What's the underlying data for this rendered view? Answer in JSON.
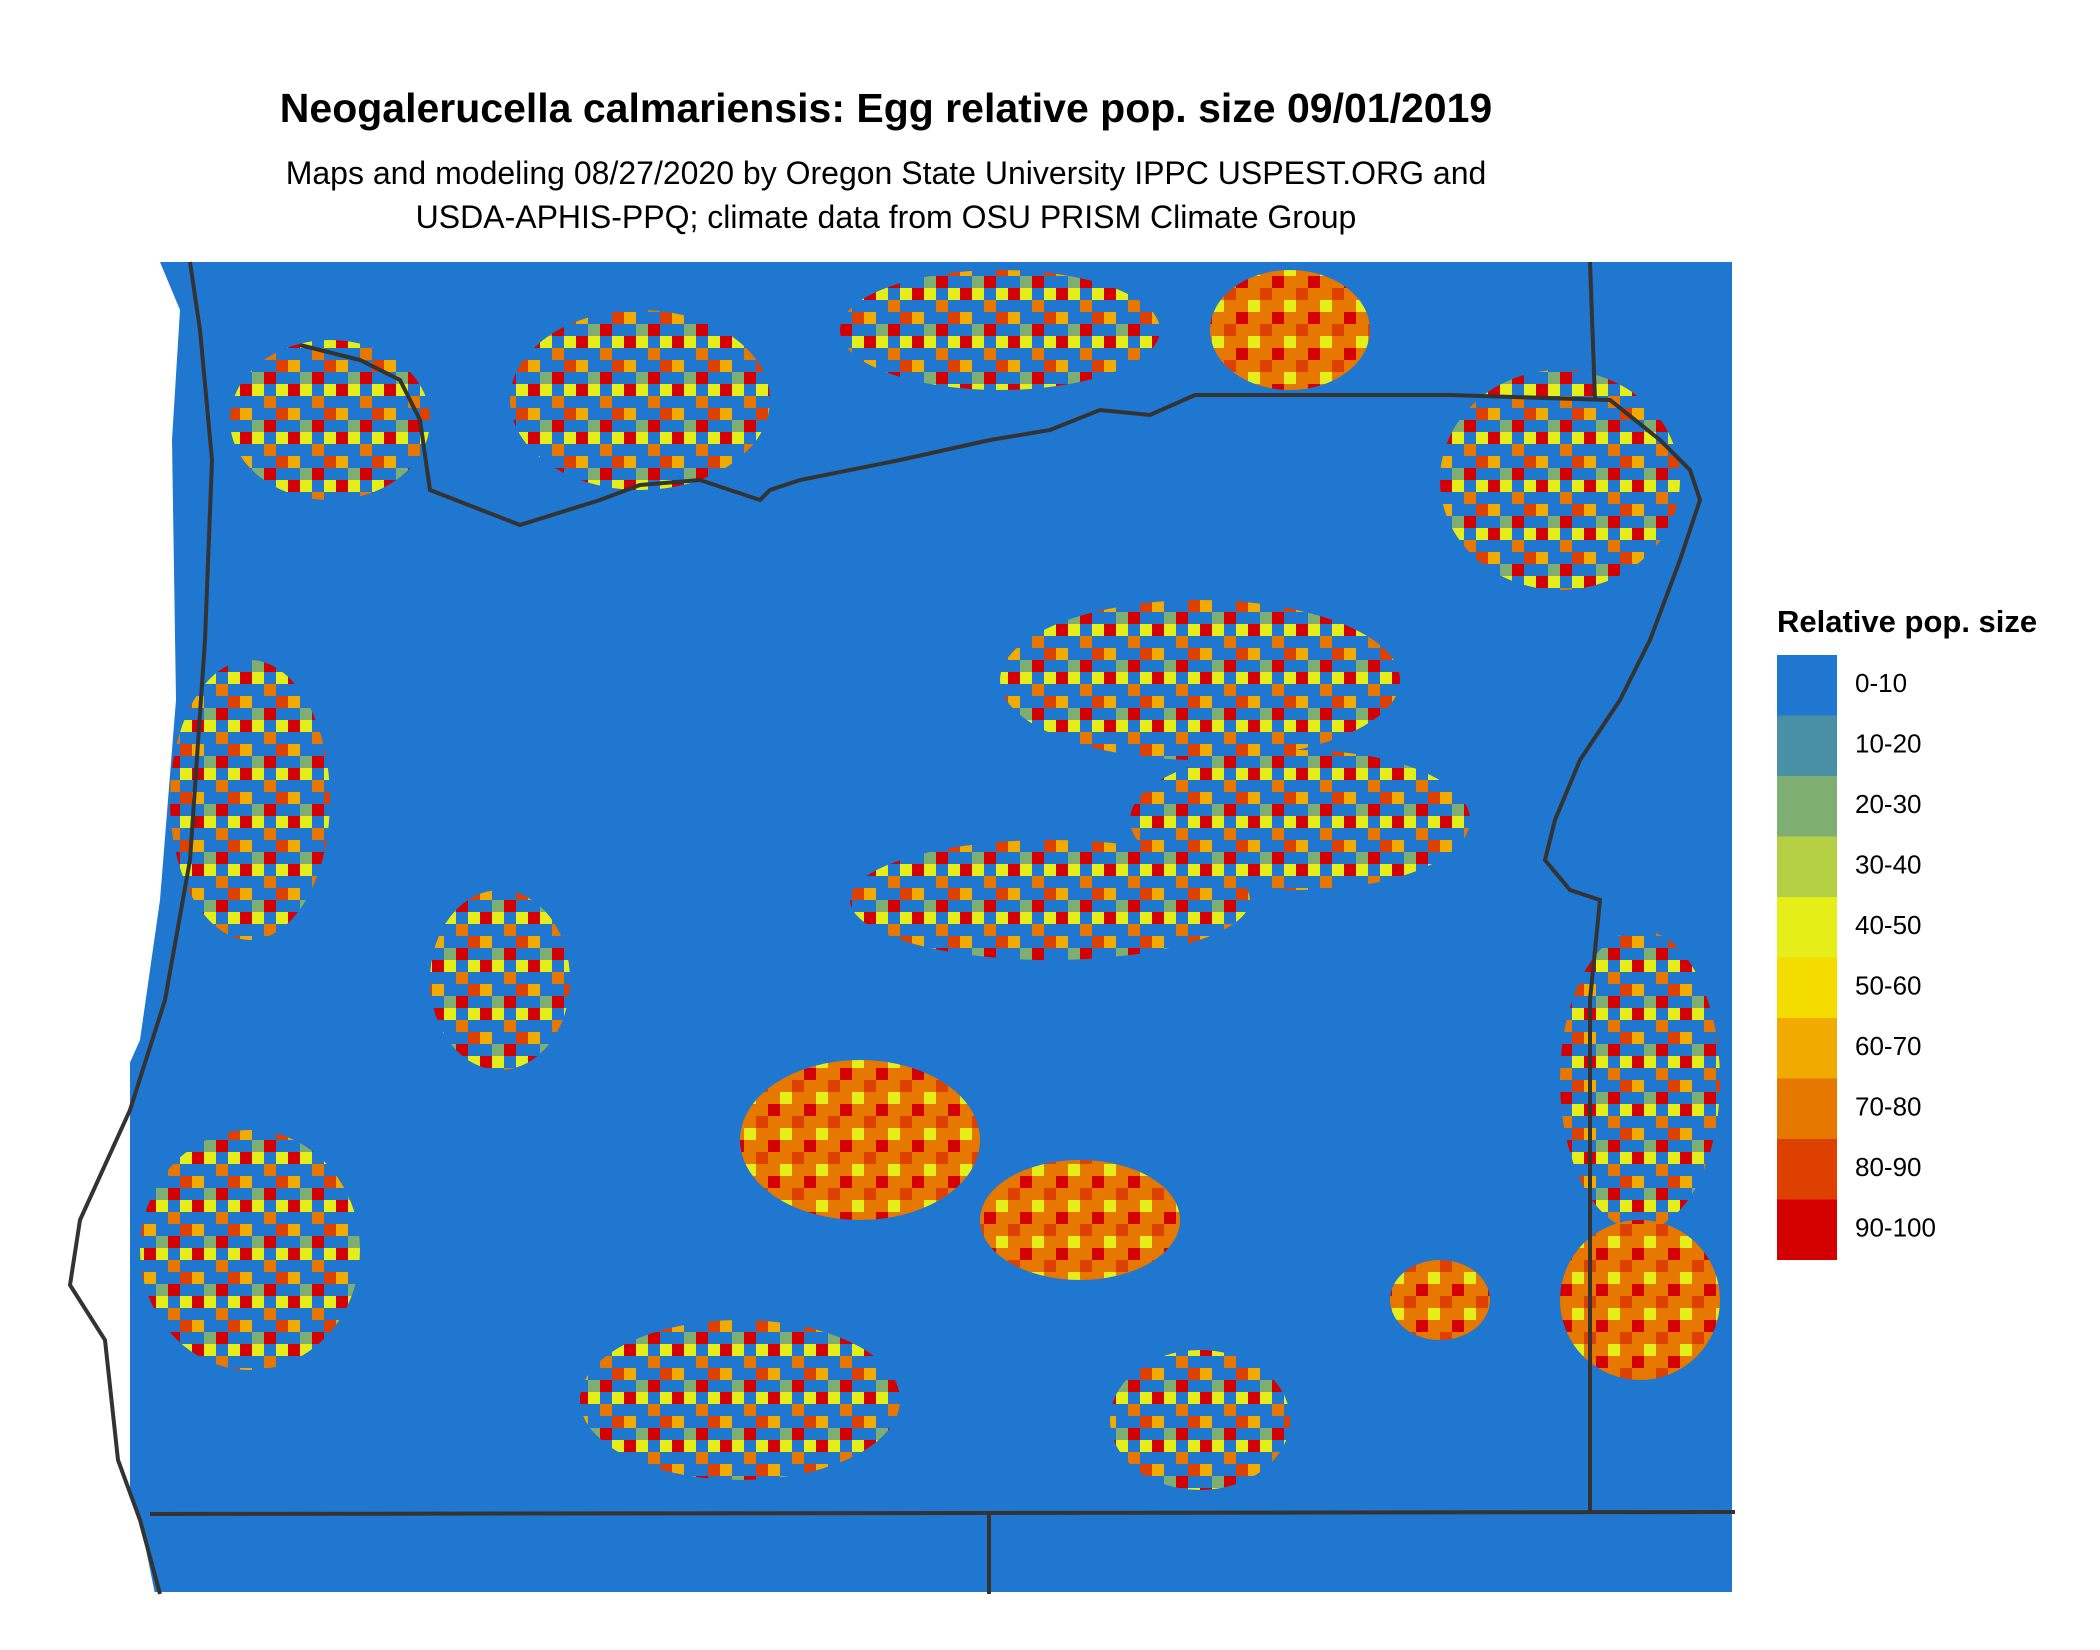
{
  "title": "Neogalerucella calmariensis: Egg relative pop. size 09/01/2019",
  "subtitle": [
    "Maps and modeling 08/27/2020 by Oregon State University IPPC USPEST.ORG and",
    "USDA-APHIS-PPQ; climate data from OSU PRISM Climate Group"
  ],
  "legend": {
    "title": "Relative pop. size",
    "items": [
      {
        "label": "0-10",
        "color": "#1f77d0"
      },
      {
        "label": "10-20",
        "color": "#4a90a4"
      },
      {
        "label": "20-30",
        "color": "#7fae73"
      },
      {
        "label": "30-40",
        "color": "#b5cf45"
      },
      {
        "label": "40-50",
        "color": "#e6ee1a"
      },
      {
        "label": "50-60",
        "color": "#f5dc00"
      },
      {
        "label": "60-70",
        "color": "#f0aa00"
      },
      {
        "label": "70-80",
        "color": "#e67800"
      },
      {
        "label": "80-90",
        "color": "#de4000"
      },
      {
        "label": "90-100",
        "color": "#d40000"
      }
    ]
  }
}
